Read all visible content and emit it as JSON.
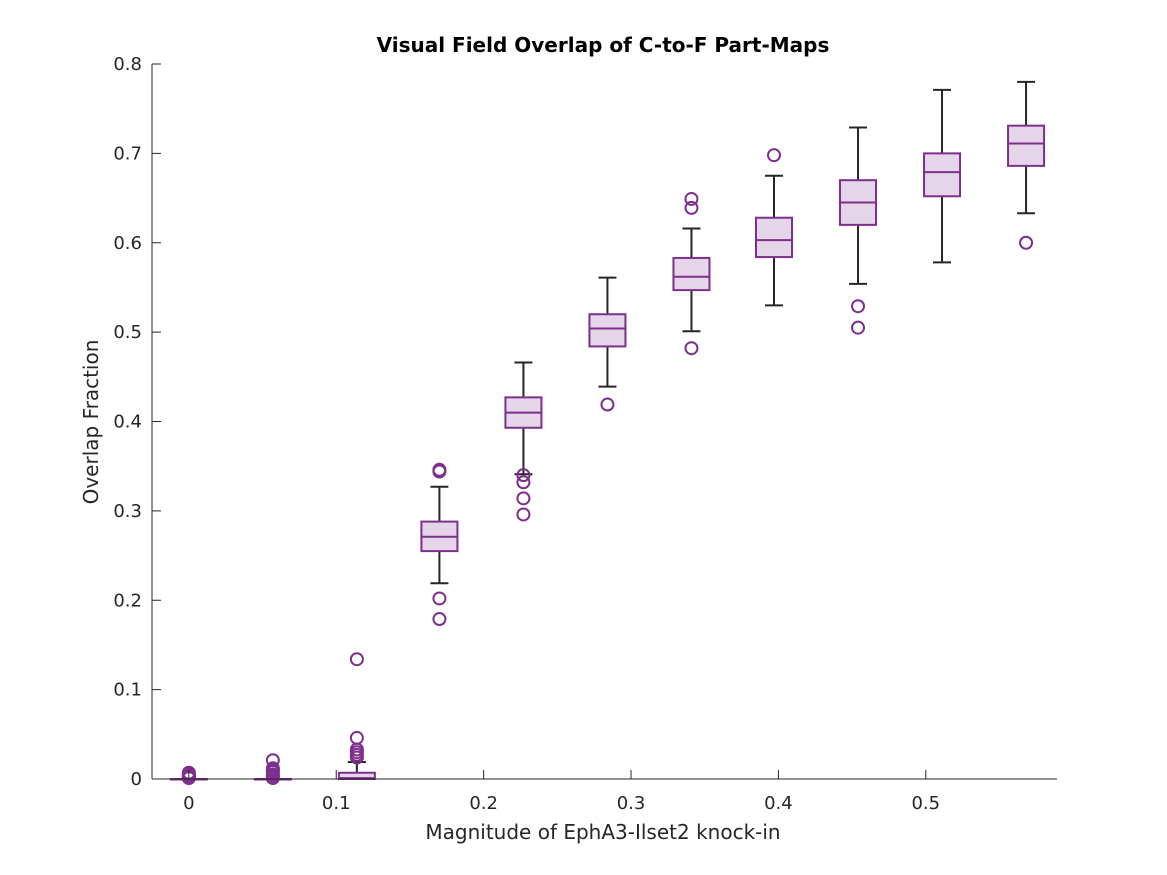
{
  "chart_data": {
    "type": "box",
    "title": "Visual Field Overlap of C-to-F Part-Maps",
    "xlabel": "Magnitude of EphA3-Ilset2 knock-in",
    "ylabel": "Overlap Fraction",
    "xlim": [
      -0.025,
      0.589
    ],
    "ylim": [
      0,
      0.8
    ],
    "xticks": [
      0,
      0.1,
      0.2,
      0.3,
      0.4,
      0.5
    ],
    "xtick_labels": [
      "0",
      "0.1",
      "0.2",
      "0.3",
      "0.4",
      "0.5"
    ],
    "yticks": [
      0,
      0.1,
      0.2,
      0.3,
      0.4,
      0.5,
      0.6,
      0.7,
      0.8
    ],
    "ytick_labels": [
      "0",
      "0.1",
      "0.2",
      "0.3",
      "0.4",
      "0.5",
      "0.6",
      "0.7",
      "0.8"
    ],
    "grid": false,
    "colors": {
      "box_edge": "#7E2F8E",
      "box_fill": "#E5D5E8",
      "whisker": "#262626",
      "outlier": "#7E2F8E",
      "axis": "#262626"
    },
    "boxes": [
      {
        "x": 0.0,
        "min": 0.0,
        "q1": 0.0,
        "median": 0.0,
        "q3": 0.0,
        "max": 0.0,
        "outliers": [
          0.001,
          0.002,
          0.003,
          0.005,
          0.006,
          0.007,
          0.004
        ]
      },
      {
        "x": 0.057,
        "min": 0.0,
        "q1": 0.0,
        "median": 0.0,
        "q3": 0.0,
        "max": 0.0,
        "outliers": [
          0.001,
          0.003,
          0.005,
          0.008,
          0.01,
          0.012,
          0.021
        ]
      },
      {
        "x": 0.114,
        "min": 0.0,
        "q1": 0.0,
        "median": 0.001,
        "q3": 0.007,
        "max": 0.019,
        "outliers": [
          0.024,
          0.027,
          0.03,
          0.033,
          0.046,
          0.134
        ]
      },
      {
        "x": 0.17,
        "min": 0.219,
        "q1": 0.255,
        "median": 0.271,
        "q3": 0.288,
        "max": 0.327,
        "outliers": [
          0.344,
          0.346,
          0.202,
          0.179
        ]
      },
      {
        "x": 0.227,
        "min": 0.341,
        "q1": 0.393,
        "median": 0.41,
        "q3": 0.427,
        "max": 0.466,
        "outliers": [
          0.34,
          0.332,
          0.314,
          0.296
        ]
      },
      {
        "x": 0.284,
        "min": 0.439,
        "q1": 0.484,
        "median": 0.504,
        "q3": 0.52,
        "max": 0.561,
        "outliers": [
          0.419
        ]
      },
      {
        "x": 0.341,
        "min": 0.501,
        "q1": 0.547,
        "median": 0.562,
        "q3": 0.583,
        "max": 0.616,
        "outliers": [
          0.649,
          0.639,
          0.482
        ]
      },
      {
        "x": 0.397,
        "min": 0.53,
        "q1": 0.584,
        "median": 0.603,
        "q3": 0.628,
        "max": 0.675,
        "outliers": [
          0.698
        ]
      },
      {
        "x": 0.454,
        "min": 0.554,
        "q1": 0.62,
        "median": 0.645,
        "q3": 0.67,
        "max": 0.729,
        "outliers": [
          0.529,
          0.505
        ]
      },
      {
        "x": 0.511,
        "min": 0.578,
        "q1": 0.652,
        "median": 0.679,
        "q3": 0.7,
        "max": 0.771,
        "outliers": []
      },
      {
        "x": 0.568,
        "min": 0.633,
        "q1": 0.686,
        "median": 0.711,
        "q3": 0.731,
        "max": 0.78,
        "outliers": [
          0.6
        ]
      }
    ]
  }
}
